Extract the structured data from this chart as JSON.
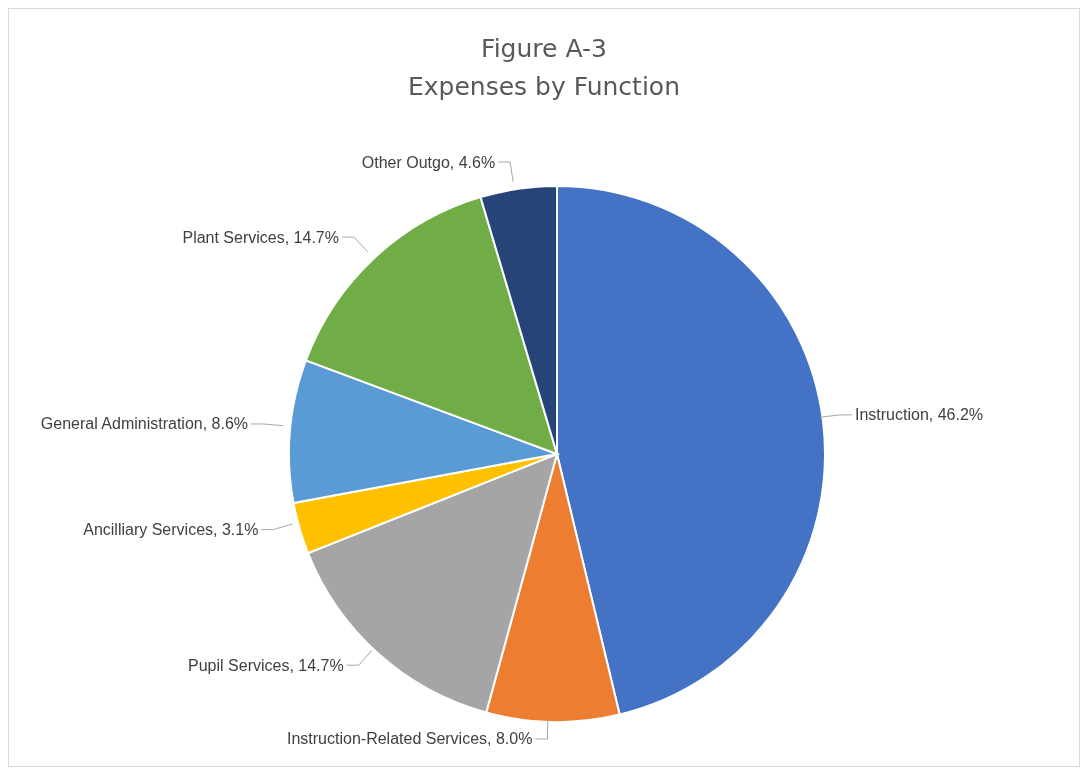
{
  "chart_data": {
    "type": "pie",
    "title": "Figure A-3",
    "subtitle": "Expenses by Function",
    "categories": [
      "Instruction",
      "Instruction-Related Services",
      "Pupil Services",
      "Ancilliary Services",
      "General Administration",
      "Plant Services",
      "Other Outgo"
    ],
    "values": [
      46.2,
      8.0,
      14.7,
      3.1,
      8.6,
      14.7,
      4.6
    ],
    "value_labels": [
      "46.2%",
      "8.0%",
      "14.7%",
      "3.1%",
      "8.6%",
      "14.7%",
      "4.6%"
    ],
    "colors": [
      "#4472c4",
      "#ed7d31",
      "#a5a5a5",
      "#ffc000",
      "#5b9bd5",
      "#70ad47",
      "#264478"
    ],
    "legend": false
  }
}
